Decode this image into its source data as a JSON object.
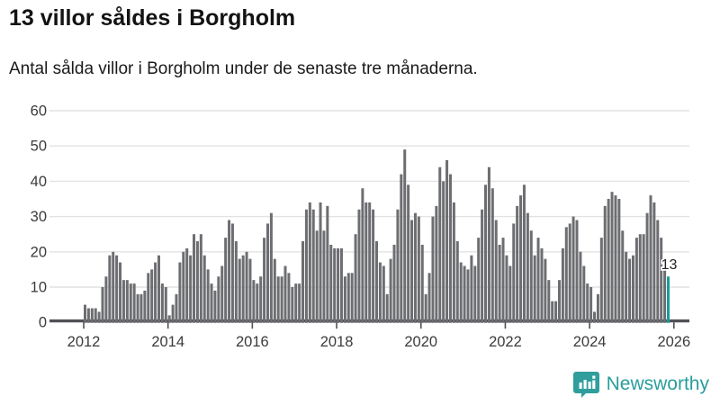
{
  "header": {
    "title": "13 villor såldes i Borgholm",
    "subtitle": "Antal sålda villor i Borgholm under de senaste tre månaderna."
  },
  "chart_data": {
    "type": "bar",
    "title": "13 villor såldes i Borgholm",
    "subtitle": "Antal sålda villor i Borgholm under de senaste tre månaderna.",
    "xlabel": "",
    "ylabel": "",
    "ylim": [
      0,
      60
    ],
    "y_ticks": [
      0,
      10,
      20,
      30,
      40,
      50,
      60
    ],
    "x_tick_years": [
      2012,
      2014,
      2016,
      2018,
      2020,
      2022,
      2024,
      2026
    ],
    "grid": true,
    "legend": false,
    "start_month": "2012-01",
    "frequency": "monthly",
    "values": [
      5,
      4,
      4,
      4,
      3,
      10,
      13,
      19,
      20,
      19,
      17,
      12,
      12,
      11,
      11,
      8,
      8,
      9,
      14,
      15,
      17,
      19,
      11,
      10,
      2,
      5,
      8,
      17,
      20,
      21,
      19,
      25,
      23,
      25,
      19,
      15,
      11,
      9,
      13,
      16,
      24,
      29,
      28,
      23,
      18,
      19,
      20,
      18,
      12,
      11,
      13,
      24,
      28,
      31,
      18,
      13,
      13,
      16,
      14,
      10,
      11,
      11,
      23,
      32,
      34,
      32,
      26,
      34,
      26,
      33,
      22,
      21,
      21,
      21,
      13,
      14,
      14,
      25,
      32,
      38,
      34,
      34,
      32,
      23,
      17,
      16,
      8,
      18,
      22,
      32,
      42,
      49,
      39,
      29,
      31,
      30,
      22,
      8,
      14,
      30,
      33,
      44,
      40,
      46,
      42,
      34,
      23,
      17,
      16,
      15,
      19,
      16,
      24,
      32,
      39,
      44,
      38,
      29,
      22,
      24,
      19,
      16,
      28,
      33,
      36,
      39,
      31,
      26,
      19,
      24,
      21,
      18,
      12,
      6,
      6,
      12,
      21,
      27,
      28,
      30,
      29,
      20,
      16,
      11,
      10,
      3,
      8,
      24,
      33,
      35,
      37,
      36,
      35,
      26,
      20,
      18,
      19,
      24,
      25,
      25,
      31,
      36,
      34,
      29,
      24,
      17,
      13
    ],
    "highlight": {
      "index_from_end": 0,
      "value": 13,
      "label": "13"
    },
    "bar_color": "#6d6e71",
    "highlight_color": "#199c9b",
    "grid_color": "#e2e2e2",
    "axis_color": "#515156",
    "tick_label_color": "#3b3b3b"
  },
  "annotation": {
    "last_value_label": "13"
  },
  "footer": {
    "brand": "Newsworthy",
    "logo_icon": "speech-bubble-bar-chart-icon",
    "brand_color": "#2a9d9d",
    "logo_bg": "#2f9e9c"
  }
}
